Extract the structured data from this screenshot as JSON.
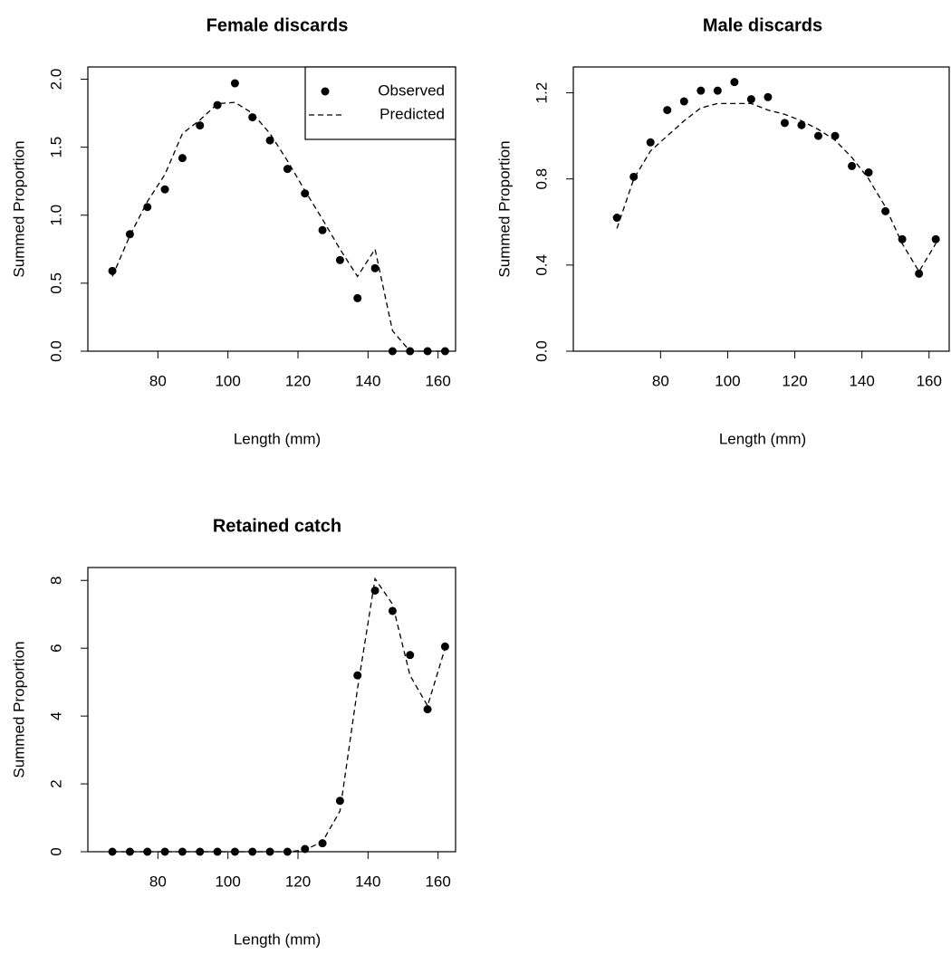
{
  "chart_data": [
    {
      "type": "line",
      "title": "Female discards",
      "x_label": "Length (mm)",
      "y_label": "Summed Proportion",
      "x": [
        67,
        72,
        77,
        82,
        87,
        92,
        97,
        102,
        107,
        112,
        117,
        122,
        127,
        132,
        137,
        142,
        147,
        152,
        157,
        162
      ],
      "series": [
        {
          "name": "Observed",
          "color": "#000000",
          "mode": "points",
          "values": [
            0.59,
            0.86,
            1.06,
            1.19,
            1.42,
            1.66,
            1.81,
            1.97,
            1.72,
            1.55,
            1.34,
            1.16,
            0.89,
            0.67,
            0.39,
            0.61,
            0.0,
            0.0,
            0.0,
            0.0
          ]
        },
        {
          "name": "Predicted",
          "color": "#000000",
          "mode": "dashed",
          "values": [
            0.55,
            0.85,
            1.1,
            1.3,
            1.6,
            1.7,
            1.82,
            1.83,
            1.75,
            1.6,
            1.4,
            1.18,
            0.97,
            0.75,
            0.55,
            0.75,
            0.15,
            0.0,
            0.0,
            0.0
          ]
        }
      ],
      "xlim": [
        60,
        165
      ],
      "xticks": [
        80,
        100,
        120,
        140,
        160
      ],
      "ylim": [
        0,
        2.09
      ],
      "yticks": [
        {
          "value": 0,
          "label": "0.0"
        },
        {
          "value": 0.5,
          "label": "0.5"
        },
        {
          "value": 1,
          "label": "1.0"
        },
        {
          "value": 1.5,
          "label": "1.5"
        },
        {
          "value": 2,
          "label": "2.0"
        }
      ],
      "legend": "top-right"
    },
    {
      "type": "line",
      "title": "Male discards",
      "x_label": "Length (mm)",
      "y_label": "Summed Proportion",
      "x": [
        67,
        72,
        77,
        82,
        87,
        92,
        97,
        102,
        107,
        112,
        117,
        122,
        127,
        132,
        137,
        142,
        147,
        152,
        157,
        162
      ],
      "series": [
        {
          "color": "#000000",
          "mode": "points",
          "values": [
            0.62,
            0.81,
            0.97,
            1.12,
            1.16,
            1.21,
            1.21,
            1.25,
            1.17,
            1.18,
            1.06,
            1.05,
            1.0,
            1.0,
            0.86,
            0.83,
            0.65,
            0.52,
            0.36,
            0.52
          ]
        },
        {
          "color": "#000000",
          "mode": "dashed",
          "values": [
            0.57,
            0.8,
            0.93,
            1.0,
            1.07,
            1.13,
            1.15,
            1.15,
            1.15,
            1.12,
            1.1,
            1.07,
            1.03,
            0.98,
            0.9,
            0.8,
            0.67,
            0.5,
            0.37,
            0.5
          ]
        }
      ],
      "xlim": [
        54,
        166
      ],
      "xticks": [
        80,
        100,
        120,
        140,
        160
      ],
      "ylim": [
        0,
        1.32
      ],
      "yticks": [
        {
          "value": 0,
          "label": "0.0"
        },
        {
          "value": 0.4,
          "label": "0.4"
        },
        {
          "value": 0.8,
          "label": "0.8"
        },
        {
          "value": 1.2,
          "label": "1.2"
        }
      ]
    },
    {
      "type": "line",
      "title": "Retained catch",
      "x_label": "Length (mm)",
      "y_label": "Summed Proportion",
      "x": [
        67,
        72,
        77,
        82,
        87,
        92,
        97,
        102,
        107,
        112,
        117,
        122,
        127,
        132,
        137,
        142,
        147,
        152,
        157,
        162
      ],
      "series": [
        {
          "color": "#000000",
          "mode": "points",
          "values": [
            0,
            0,
            0,
            0,
            0,
            0,
            0,
            0,
            0,
            0,
            0,
            0.08,
            0.25,
            1.5,
            5.2,
            7.7,
            7.1,
            5.8,
            4.2,
            6.05
          ]
        },
        {
          "color": "#000000",
          "mode": "dashed",
          "values": [
            0,
            0,
            0,
            0,
            0,
            0,
            0,
            0,
            0,
            0,
            0,
            0.05,
            0.3,
            1.2,
            4.8,
            8.05,
            7.3,
            5.2,
            4.3,
            6.0
          ]
        }
      ],
      "xlim": [
        60,
        165
      ],
      "xticks": [
        80,
        100,
        120,
        140,
        160
      ],
      "ylim": [
        0,
        8.38
      ],
      "yticks": [
        0,
        2,
        4,
        6,
        8
      ]
    }
  ]
}
